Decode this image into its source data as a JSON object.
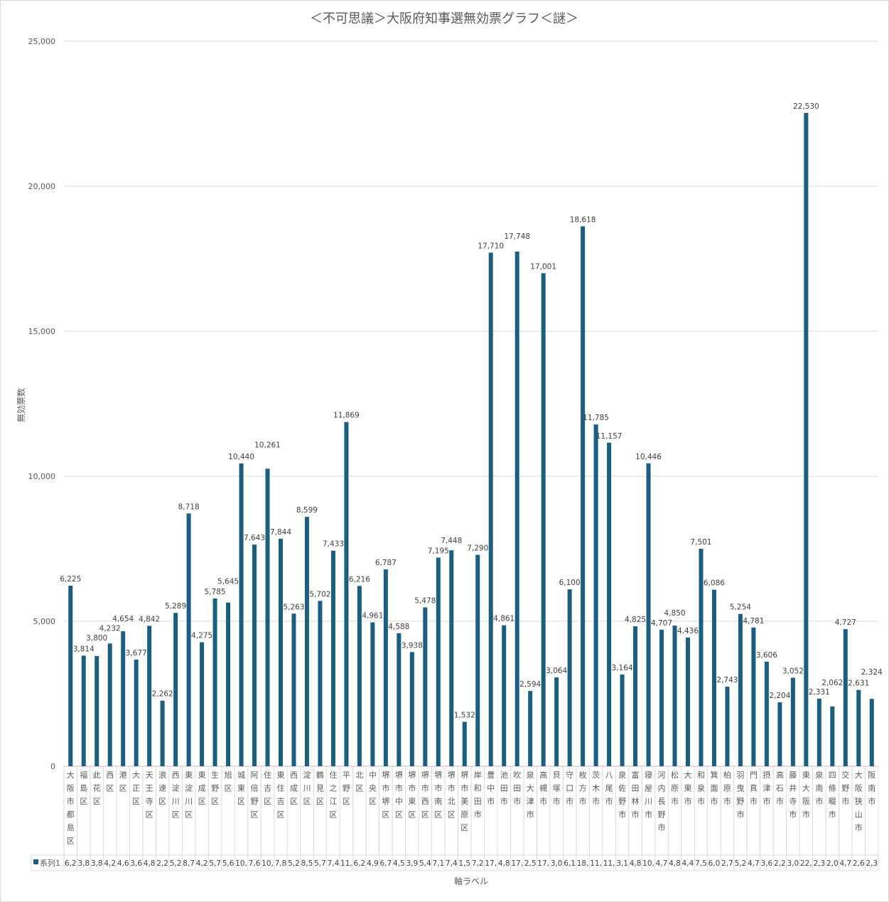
{
  "chart_data": {
    "type": "bar",
    "title": "＜不可思議＞大阪府知事選無効票グラフ＜謎＞",
    "xlabel": "軸ラベル",
    "ylabel": "無効票数",
    "ylim": [
      0,
      25000
    ],
    "yticks": [
      0,
      5000,
      10000,
      15000,
      20000,
      25000
    ],
    "ytick_labels": [
      "0",
      "5,000",
      "10,000",
      "15,000",
      "20,000",
      "25,000"
    ],
    "grid": true,
    "legend": "bottom data table",
    "series_name": "系列1",
    "color": "#1b5e80",
    "categories": [
      "大阪市都島区",
      "福島区",
      "此花区",
      "西区",
      "港区",
      "大正区",
      "天王寺区",
      "浪速区",
      "西淀川区",
      "東淀川区",
      "東成区",
      "生野区",
      "旭区",
      "城東区",
      "阿倍野区",
      "住吉区",
      "東住吉区",
      "西成区",
      "淀川区",
      "鶴見区",
      "住之江区",
      "平野区",
      "北区",
      "中央区",
      "堺市堺区",
      "堺市中区",
      "堺市東区",
      "堺市西区",
      "堺市南区",
      "堺市北区",
      "堺市美原区",
      "岸和田市",
      "豊中市",
      "池田市",
      "吹田市",
      "泉大津市",
      "高槻市",
      "貝塚市",
      "守口市",
      "枚方市",
      "茨木市",
      "八尾市",
      "泉佐野市",
      "富田林市",
      "寝屋川市",
      "河内長野市",
      "松原市",
      "大東市",
      "和泉市",
      "箕面市",
      "柏原市",
      "羽曳野市",
      "門真市",
      "摂津市",
      "高石市",
      "藤井寺市",
      "東大阪市",
      "泉南市",
      "四條畷市",
      "交野市",
      "大阪狭山市",
      "阪南市"
    ],
    "values": [
      6225,
      3814,
      3800,
      4232,
      4654,
      3677,
      4842,
      2262,
      5289,
      8718,
      4275,
      5785,
      5645,
      10440,
      7643,
      10261,
      7844,
      5263,
      8599,
      5702,
      7433,
      11869,
      6216,
      4961,
      6787,
      4588,
      3938,
      5478,
      7195,
      7448,
      1532,
      7290,
      17710,
      4861,
      17748,
      2594,
      17001,
      3064,
      6100,
      18618,
      11785,
      11157,
      3164,
      4825,
      10446,
      4707,
      4850,
      4436,
      7501,
      6086,
      2743,
      5254,
      4781,
      3606,
      2204,
      3052,
      22530,
      2331,
      2062,
      4727,
      2631,
      2324
    ]
  }
}
